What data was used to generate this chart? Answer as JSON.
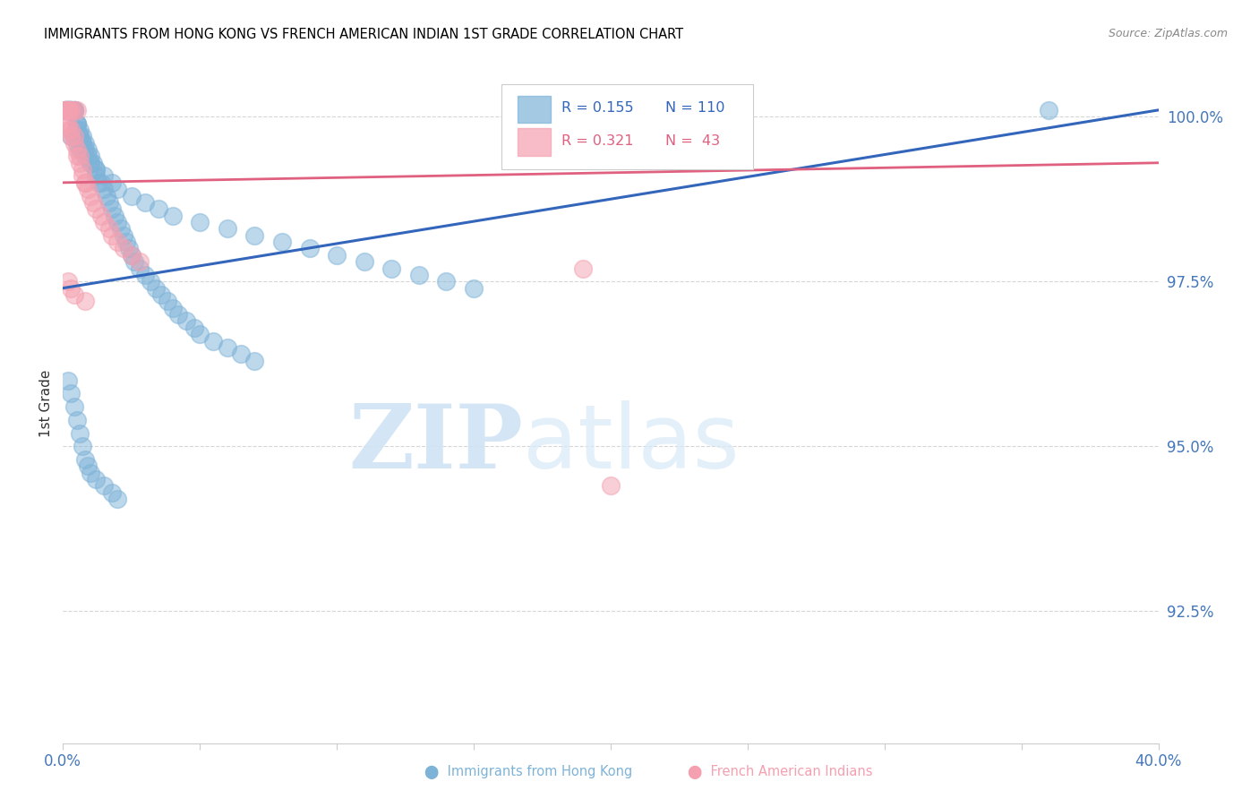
{
  "title": "IMMIGRANTS FROM HONG KONG VS FRENCH AMERICAN INDIAN 1ST GRADE CORRELATION CHART",
  "source": "Source: ZipAtlas.com",
  "ylabel": "1st Grade",
  "xlim": [
    0.0,
    0.4
  ],
  "ylim": [
    0.905,
    1.008
  ],
  "yticks": [
    1.0,
    0.975,
    0.95,
    0.925
  ],
  "ytick_labels": [
    "100.0%",
    "97.5%",
    "95.0%",
    "92.5%"
  ],
  "xtick_labels": [
    "0.0%",
    "",
    "",
    "",
    "",
    "",
    "",
    "",
    "40.0%"
  ],
  "blue_color": "#7EB3D8",
  "pink_color": "#F4A0B0",
  "blue_edge_color": "#5B9CC4",
  "pink_edge_color": "#E07090",
  "blue_line_color": "#3366BB",
  "pink_line_color": "#E06080",
  "legend_r_blue": "R = 0.155",
  "legend_n_blue": "N = 110",
  "legend_r_pink": "R = 0.321",
  "legend_n_pink": "N =  43",
  "axis_color": "#4477BB",
  "blue_line_y0": 0.974,
  "blue_line_y1": 1.001,
  "pink_line_y0": 0.99,
  "pink_line_y1": 0.993,
  "blue_x": [
    0.001,
    0.001,
    0.001,
    0.001,
    0.001,
    0.002,
    0.002,
    0.002,
    0.002,
    0.002,
    0.002,
    0.002,
    0.003,
    0.003,
    0.003,
    0.003,
    0.003,
    0.003,
    0.004,
    0.004,
    0.004,
    0.004,
    0.005,
    0.005,
    0.005,
    0.005,
    0.006,
    0.006,
    0.006,
    0.007,
    0.007,
    0.007,
    0.008,
    0.008,
    0.009,
    0.009,
    0.01,
    0.01,
    0.011,
    0.012,
    0.012,
    0.013,
    0.014,
    0.015,
    0.016,
    0.017,
    0.018,
    0.019,
    0.02,
    0.021,
    0.022,
    0.023,
    0.024,
    0.025,
    0.026,
    0.028,
    0.03,
    0.032,
    0.034,
    0.036,
    0.038,
    0.04,
    0.042,
    0.045,
    0.048,
    0.05,
    0.055,
    0.06,
    0.065,
    0.07,
    0.003,
    0.004,
    0.005,
    0.006,
    0.007,
    0.008,
    0.01,
    0.012,
    0.015,
    0.018,
    0.02,
    0.025,
    0.03,
    0.035,
    0.04,
    0.05,
    0.06,
    0.07,
    0.08,
    0.09,
    0.1,
    0.11,
    0.12,
    0.13,
    0.14,
    0.15,
    0.002,
    0.003,
    0.004,
    0.005,
    0.006,
    0.007,
    0.008,
    0.009,
    0.01,
    0.012,
    0.015,
    0.018,
    0.02,
    0.36
  ],
  "blue_y": [
    1.001,
    1.001,
    1.001,
    1.001,
    1.001,
    1.001,
    1.001,
    1.001,
    1.001,
    1.001,
    1.001,
    1.001,
    1.001,
    1.001,
    1.001,
    1.001,
    1.001,
    1.001,
    1.001,
    1.001,
    1.001,
    1.001,
    0.999,
    0.999,
    0.999,
    0.998,
    0.998,
    0.997,
    0.997,
    0.997,
    0.996,
    0.996,
    0.996,
    0.995,
    0.995,
    0.994,
    0.994,
    0.993,
    0.993,
    0.992,
    0.991,
    0.99,
    0.99,
    0.989,
    0.988,
    0.987,
    0.986,
    0.985,
    0.984,
    0.983,
    0.982,
    0.981,
    0.98,
    0.979,
    0.978,
    0.977,
    0.976,
    0.975,
    0.974,
    0.973,
    0.972,
    0.971,
    0.97,
    0.969,
    0.968,
    0.967,
    0.966,
    0.965,
    0.964,
    0.963,
    0.997,
    0.997,
    0.996,
    0.995,
    0.995,
    0.994,
    0.993,
    0.992,
    0.991,
    0.99,
    0.989,
    0.988,
    0.987,
    0.986,
    0.985,
    0.984,
    0.983,
    0.982,
    0.981,
    0.98,
    0.979,
    0.978,
    0.977,
    0.976,
    0.975,
    0.974,
    0.96,
    0.958,
    0.956,
    0.954,
    0.952,
    0.95,
    0.948,
    0.947,
    0.946,
    0.945,
    0.944,
    0.943,
    0.942,
    1.001
  ],
  "pink_x": [
    0.001,
    0.001,
    0.001,
    0.002,
    0.002,
    0.002,
    0.003,
    0.003,
    0.004,
    0.005,
    0.001,
    0.002,
    0.002,
    0.003,
    0.003,
    0.004,
    0.004,
    0.005,
    0.005,
    0.006,
    0.006,
    0.007,
    0.007,
    0.008,
    0.008,
    0.009,
    0.01,
    0.011,
    0.012,
    0.014,
    0.015,
    0.017,
    0.018,
    0.02,
    0.022,
    0.025,
    0.028,
    0.19,
    0.002,
    0.003,
    0.004,
    0.008,
    0.2
  ],
  "pink_y": [
    1.001,
    1.001,
    1.001,
    1.001,
    1.001,
    1.001,
    1.001,
    1.001,
    1.001,
    1.001,
    0.999,
    0.999,
    0.998,
    0.998,
    0.997,
    0.997,
    0.996,
    0.995,
    0.994,
    0.994,
    0.993,
    0.992,
    0.991,
    0.99,
    0.99,
    0.989,
    0.988,
    0.987,
    0.986,
    0.985,
    0.984,
    0.983,
    0.982,
    0.981,
    0.98,
    0.979,
    0.978,
    0.977,
    0.975,
    0.974,
    0.973,
    0.972,
    0.944
  ]
}
